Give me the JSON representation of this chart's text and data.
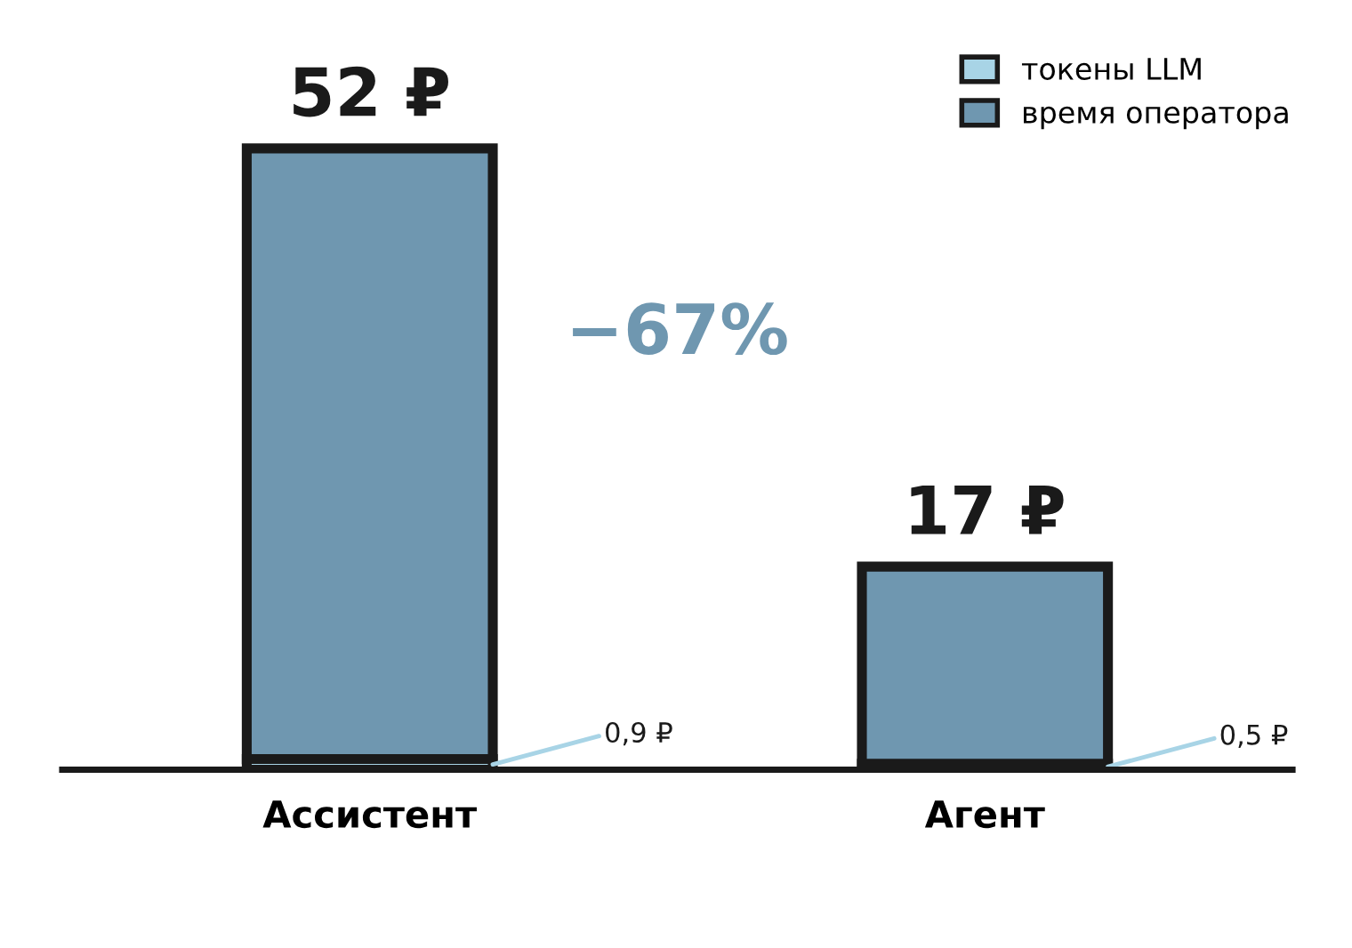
{
  "chart_data": {
    "type": "bar",
    "stacked": true,
    "categories": [
      "Ассистент",
      "Агент"
    ],
    "series": [
      {
        "name": "токены LLM",
        "color": "#a8d4e6",
        "values": [
          0.9,
          0.5
        ],
        "value_labels": [
          "0,9 ₽",
          "0,5 ₽"
        ]
      },
      {
        "name": "время оператора",
        "color": "#6f97b0",
        "values": [
          51.1,
          16.5
        ]
      }
    ],
    "totals": [
      "52 ₽",
      "17 ₽"
    ],
    "annotations": [
      "−67%"
    ],
    "legend": "top right",
    "grid": false
  }
}
